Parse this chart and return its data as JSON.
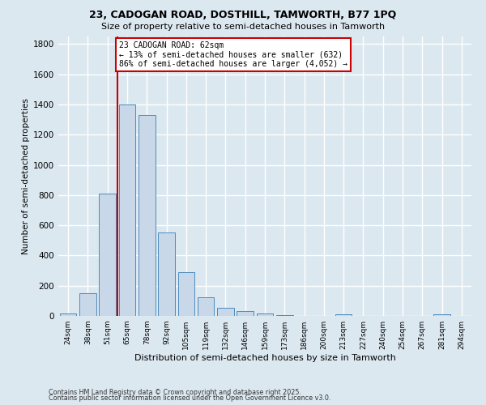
{
  "title1": "23, CADOGAN ROAD, DOSTHILL, TAMWORTH, B77 1PQ",
  "title2": "Size of property relative to semi-detached houses in Tamworth",
  "xlabel": "Distribution of semi-detached houses by size in Tamworth",
  "ylabel": "Number of semi-detached properties",
  "categories": [
    "24sqm",
    "38sqm",
    "51sqm",
    "65sqm",
    "78sqm",
    "92sqm",
    "105sqm",
    "119sqm",
    "132sqm",
    "146sqm",
    "159sqm",
    "173sqm",
    "186sqm",
    "200sqm",
    "213sqm",
    "227sqm",
    "240sqm",
    "254sqm",
    "267sqm",
    "281sqm",
    "294sqm"
  ],
  "values": [
    15,
    150,
    810,
    1400,
    1330,
    550,
    290,
    125,
    55,
    30,
    15,
    5,
    0,
    0,
    10,
    0,
    0,
    0,
    0,
    10,
    0
  ],
  "bar_color": "#c8d8e8",
  "bar_edge_color": "#4d8bbf",
  "vline_x_index": 3,
  "vline_color": "#cc0000",
  "annotation_text": "23 CADOGAN ROAD: 62sqm\n← 13% of semi-detached houses are smaller (632)\n86% of semi-detached houses are larger (4,052) →",
  "annotation_box_color": "#ffffff",
  "annotation_edge_color": "#cc0000",
  "ylim": [
    0,
    1850
  ],
  "yticks": [
    0,
    200,
    400,
    600,
    800,
    1000,
    1200,
    1400,
    1600,
    1800
  ],
  "footnote1": "Contains HM Land Registry data © Crown copyright and database right 2025.",
  "footnote2": "Contains public sector information licensed under the Open Government Licence v3.0.",
  "bg_color": "#dce8f0",
  "grid_color": "#ffffff"
}
